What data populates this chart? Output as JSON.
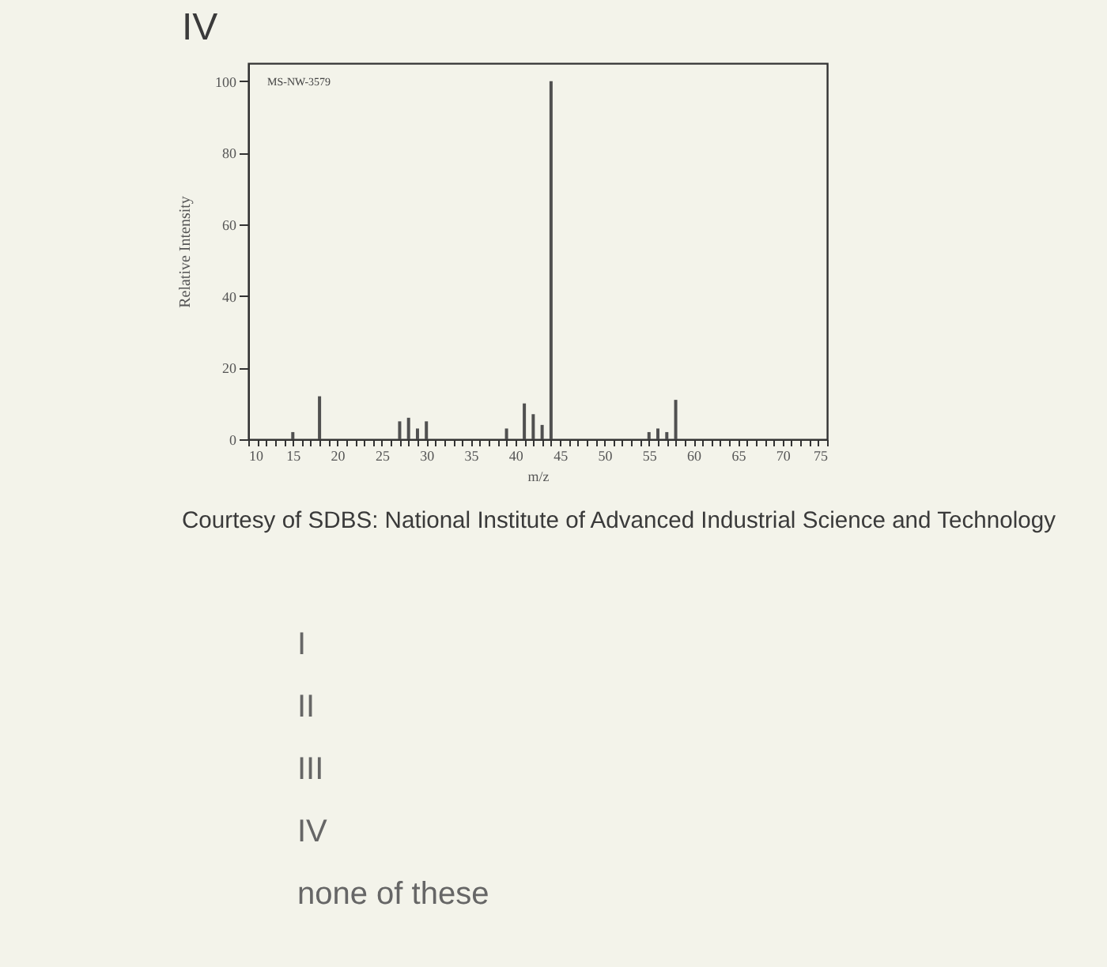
{
  "chart_data": {
    "type": "bar",
    "title": "IV",
    "xlabel": "m/z",
    "ylabel": "Relative Intensity",
    "x": [
      15,
      18,
      27,
      28,
      29,
      30,
      39,
      41,
      42,
      43,
      44,
      55,
      56,
      57,
      58
    ],
    "values": [
      2,
      12,
      5,
      6,
      3,
      5,
      3,
      10,
      7,
      4,
      100,
      2,
      3,
      2,
      11
    ],
    "color": "#505050",
    "xlim": [
      10,
      75
    ],
    "xticks": [
      10,
      {
        "value": 11,
        "label": null
      },
      {
        "value": 12,
        "label": null
      },
      {
        "value": 13,
        "label": null
      },
      {
        "value": 14,
        "label": null
      },
      15,
      {
        "value": 16,
        "label": null
      },
      {
        "value": 17,
        "label": null
      },
      {
        "value": 18,
        "label": null
      },
      {
        "value": 19,
        "label": null
      },
      20,
      {
        "value": 21,
        "label": null
      },
      {
        "value": 22,
        "label": null
      },
      {
        "value": 23,
        "label": null
      },
      {
        "value": 24,
        "label": null
      },
      25,
      {
        "value": 26,
        "label": null
      },
      {
        "value": 27,
        "label": null
      },
      {
        "value": 28,
        "label": null
      },
      {
        "value": 29,
        "label": null
      },
      30,
      {
        "value": 31,
        "label": null
      },
      {
        "value": 32,
        "label": null
      },
      {
        "value": 33,
        "label": null
      },
      {
        "value": 34,
        "label": null
      },
      35,
      {
        "value": 36,
        "label": null
      },
      {
        "value": 37,
        "label": null
      },
      {
        "value": 38,
        "label": null
      },
      {
        "value": 39,
        "label": null
      },
      40,
      {
        "value": 41,
        "label": null
      },
      {
        "value": 42,
        "label": null
      },
      {
        "value": 43,
        "label": null
      },
      {
        "value": 44,
        "label": null
      },
      45,
      {
        "value": 46,
        "label": null
      },
      {
        "value": 47,
        "label": null
      },
      {
        "value": 48,
        "label": null
      },
      {
        "value": 49,
        "label": null
      },
      50,
      {
        "value": 51,
        "label": null
      },
      {
        "value": 52,
        "label": null
      },
      {
        "value": 53,
        "label": null
      },
      {
        "value": 54,
        "label": null
      },
      55,
      {
        "value": 56,
        "label": null
      },
      {
        "value": 57,
        "label": null
      },
      {
        "value": 58,
        "label": null
      },
      {
        "value": 59,
        "label": null
      },
      60,
      {
        "value": 61,
        "label": null
      },
      {
        "value": 62,
        "label": null
      },
      {
        "value": 63,
        "label": null
      },
      {
        "value": 64,
        "label": null
      },
      65,
      {
        "value": 66,
        "label": null
      },
      {
        "value": 67,
        "label": null
      },
      {
        "value": 68,
        "label": null
      },
      {
        "value": 69,
        "label": null
      },
      70,
      {
        "value": 71,
        "label": null
      },
      {
        "value": 72,
        "label": null
      },
      {
        "value": 73,
        "label": null
      },
      {
        "value": 74,
        "label": null
      },
      75
    ],
    "ylim": [
      0,
      105
    ],
    "yticks": [
      0,
      20,
      40,
      60,
      80,
      100
    ],
    "grid": false,
    "annotations": [
      "MS-NW-3579",
      "Courtesy of SDBS: National Institute of Advanced Industrial Science and Technology",
      "I",
      "II",
      "III",
      "IV",
      "none of these"
    ]
  }
}
